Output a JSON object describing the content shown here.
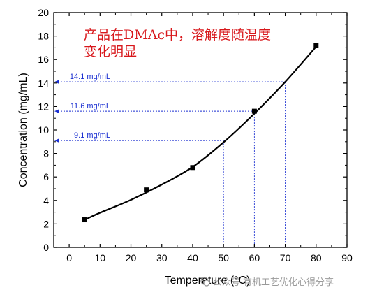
{
  "chart_data": {
    "type": "scatter",
    "xlabel": "Temperature (°C)",
    "ylabel": "Concentration (mg/mL)",
    "xlim": [
      -5,
      90
    ],
    "ylim": [
      0,
      20
    ],
    "xticks": [
      0,
      10,
      20,
      30,
      40,
      50,
      60,
      70,
      80,
      90
    ],
    "yticks": [
      0,
      2,
      4,
      6,
      8,
      10,
      12,
      14,
      16,
      18,
      20
    ],
    "points": [
      {
        "x": 5,
        "y": 2.35
      },
      {
        "x": 25,
        "y": 4.9
      },
      {
        "x": 40,
        "y": 6.8
      },
      {
        "x": 60,
        "y": 11.6
      },
      {
        "x": 80,
        "y": 17.2
      }
    ],
    "fit_curve": [
      {
        "x": 5,
        "y": 2.35
      },
      {
        "x": 10,
        "y": 2.95
      },
      {
        "x": 20,
        "y": 4.05
      },
      {
        "x": 30,
        "y": 5.35
      },
      {
        "x": 40,
        "y": 6.85
      },
      {
        "x": 50,
        "y": 8.95
      },
      {
        "x": 60,
        "y": 11.4
      },
      {
        "x": 70,
        "y": 14.1
      },
      {
        "x": 80,
        "y": 17.1
      }
    ],
    "reference_lines": [
      {
        "x": 50,
        "y": 9.1,
        "label": "9.1 mg/mL"
      },
      {
        "x": 60,
        "y": 11.6,
        "label": "11.6 mg/mL"
      },
      {
        "x": 70,
        "y": 14.1,
        "label": "14.1 mg/mL"
      }
    ],
    "annotation": "产品在DMAc中，溶解度随温度\n变化明显",
    "grid": false,
    "colors": {
      "marker": "#000000",
      "curve": "#000000",
      "reference": "#1a2fd1",
      "annotation": "#d8171b"
    }
  },
  "watermark": {
    "prefix": "公众号",
    "text": "有机工艺优化心得分享"
  }
}
